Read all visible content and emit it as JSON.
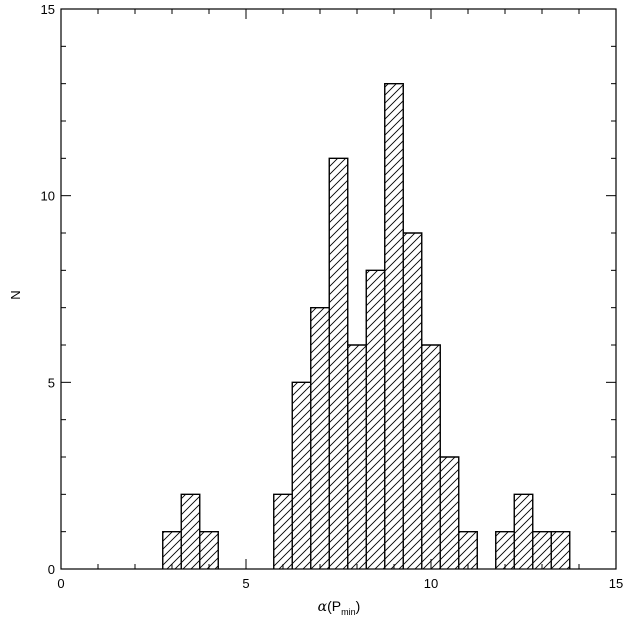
{
  "chart_data": {
    "type": "bar",
    "subtype": "histogram",
    "hatched": true,
    "grid": false,
    "xlabel_symbol": "α",
    "xlabel_paren_open": "(",
    "xlabel_main": "P",
    "xlabel_sub": "min",
    "xlabel_paren_close": ")",
    "ylabel": "N",
    "xlim": [
      0,
      15
    ],
    "ylim": [
      0,
      15
    ],
    "xticks_major": [
      0,
      5,
      10,
      15
    ],
    "yticks_major": [
      0,
      5,
      10,
      15
    ],
    "xtick_labels": [
      "0",
      "5",
      "10",
      "15"
    ],
    "ytick_labels": [
      "0",
      "5",
      "10",
      "15"
    ],
    "bin_width": 0.5,
    "bins": [
      {
        "x0": 2.75,
        "x1": 3.25,
        "count": 1
      },
      {
        "x0": 3.25,
        "x1": 3.75,
        "count": 2
      },
      {
        "x0": 3.75,
        "x1": 4.25,
        "count": 1
      },
      {
        "x0": 5.75,
        "x1": 6.25,
        "count": 2
      },
      {
        "x0": 6.25,
        "x1": 6.75,
        "count": 5
      },
      {
        "x0": 6.75,
        "x1": 7.25,
        "count": 7
      },
      {
        "x0": 7.25,
        "x1": 7.75,
        "count": 11
      },
      {
        "x0": 7.75,
        "x1": 8.25,
        "count": 6
      },
      {
        "x0": 8.25,
        "x1": 8.75,
        "count": 8
      },
      {
        "x0": 8.75,
        "x1": 9.25,
        "count": 13
      },
      {
        "x0": 9.25,
        "x1": 9.75,
        "count": 9
      },
      {
        "x0": 9.75,
        "x1": 10.25,
        "count": 6
      },
      {
        "x0": 10.25,
        "x1": 10.75,
        "count": 3
      },
      {
        "x0": 10.75,
        "x1": 11.25,
        "count": 1
      },
      {
        "x0": 11.75,
        "x1": 12.25,
        "count": 1
      },
      {
        "x0": 12.25,
        "x1": 12.75,
        "count": 2
      },
      {
        "x0": 12.75,
        "x1": 13.25,
        "count": 1
      },
      {
        "x0": 13.25,
        "x1": 13.75,
        "count": 1
      }
    ],
    "colors": {
      "stroke": "#000000",
      "background": "#ffffff",
      "hatch": "#000000"
    }
  }
}
